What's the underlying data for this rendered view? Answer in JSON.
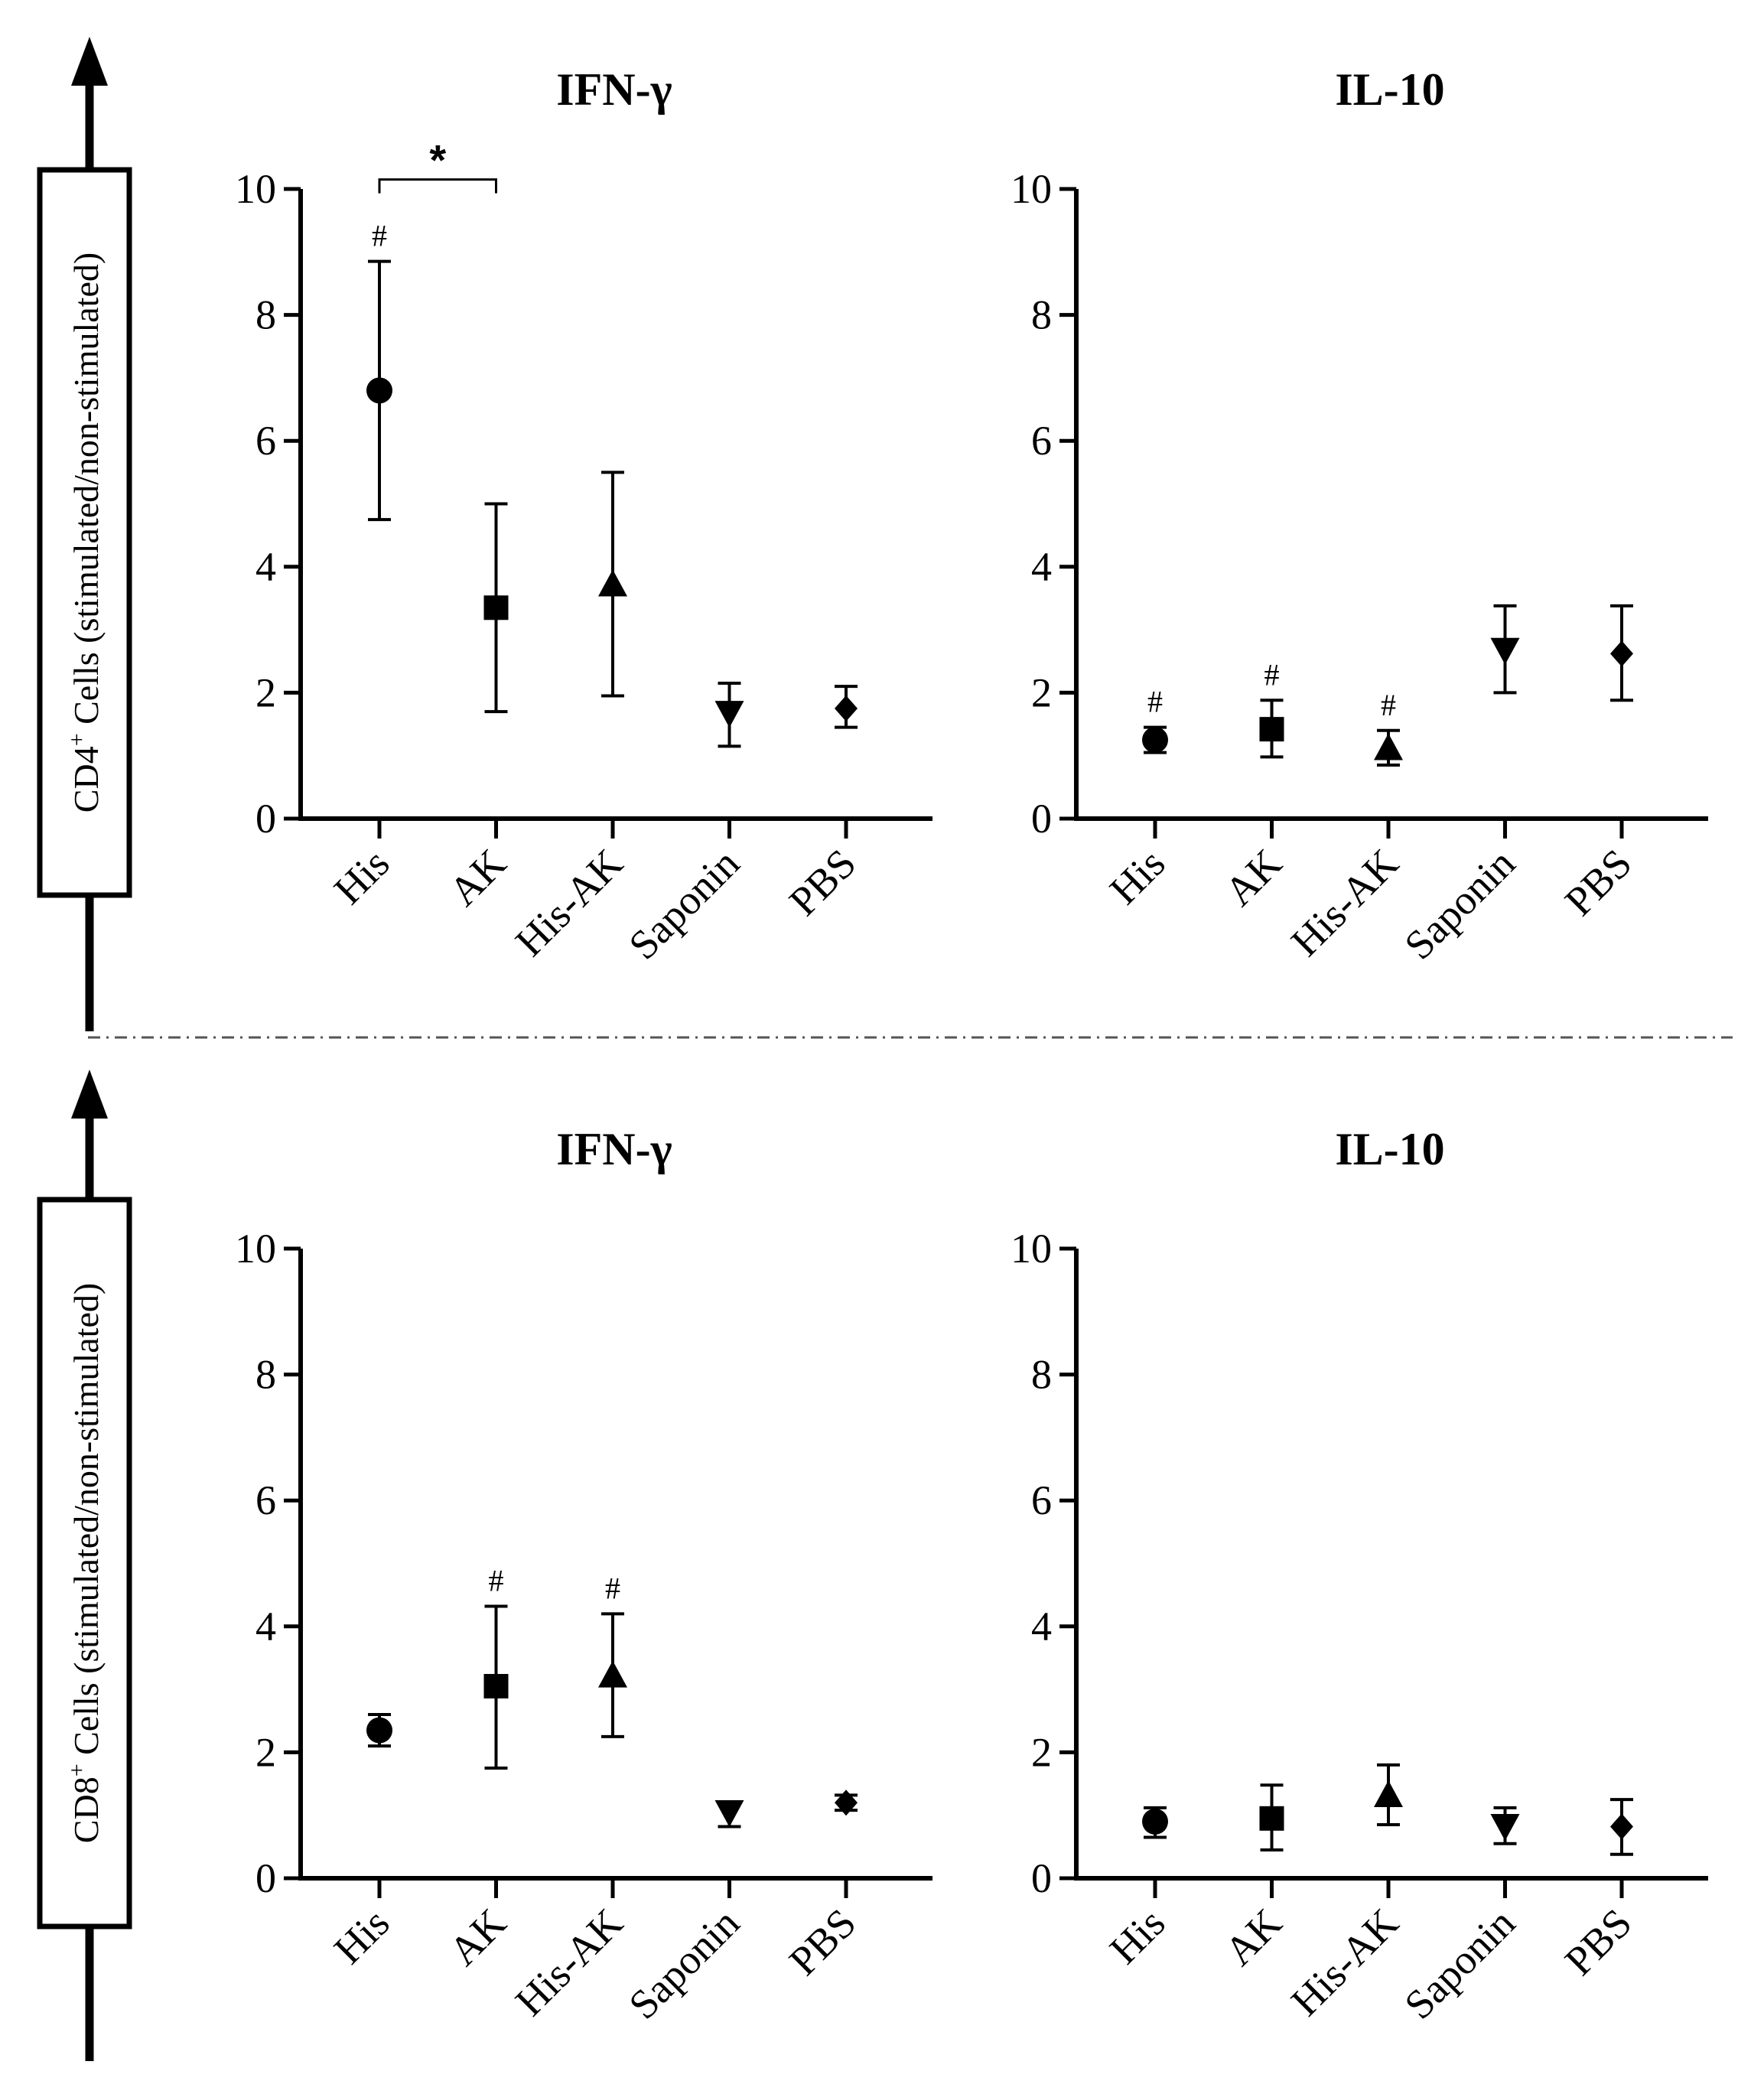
{
  "colors": {
    "ink": "#000000",
    "background": "#ffffff",
    "divider": "#555555"
  },
  "row_labels": [
    {
      "cell": "CD4",
      "sup": "+",
      "rest": " Cells (stimulated/non-stimulated)"
    },
    {
      "cell": "CD8",
      "sup": "+",
      "rest": " Cells (stimulated/non-stimulated)"
    }
  ],
  "chart_data": [
    {
      "type": "scatter",
      "row": 0,
      "col": 0,
      "title": "IFN-γ",
      "xlabel": "",
      "ylabel": "CD4+ Cells (stimulated/non-stimulated)",
      "categories": [
        "His",
        "AK",
        "His-AK",
        "Saponin",
        "PBS"
      ],
      "ylim": [
        0,
        10
      ],
      "yticks": [
        "0",
        "2",
        "4",
        "6",
        "8",
        "10"
      ],
      "markers": [
        "circle",
        "square",
        "triangle-up",
        "triangle-down",
        "diamond"
      ],
      "values": [
        6.8,
        3.35,
        3.7,
        1.7,
        1.75
      ],
      "err_low": [
        4.75,
        1.7,
        1.95,
        1.15,
        1.45
      ],
      "err_high": [
        8.85,
        5.0,
        5.5,
        2.15,
        2.1
      ],
      "hash_marks": [
        "#",
        "",
        "",
        "",
        ""
      ],
      "significance": {
        "from": 0,
        "to": 1,
        "label": "*",
        "y": 10.15
      }
    },
    {
      "type": "scatter",
      "row": 0,
      "col": 1,
      "title": "IL-10",
      "xlabel": "",
      "ylabel": "CD4+ Cells (stimulated/non-stimulated)",
      "categories": [
        "His",
        "AK",
        "His-AK",
        "Saponin",
        "PBS"
      ],
      "ylim": [
        0,
        10
      ],
      "yticks": [
        "0",
        "2",
        "4",
        "6",
        "8",
        "10"
      ],
      "markers": [
        "circle",
        "square",
        "triangle-up",
        "triangle-down",
        "diamond"
      ],
      "values": [
        1.25,
        1.42,
        1.1,
        2.7,
        2.62
      ],
      "err_low": [
        1.05,
        0.98,
        0.85,
        2.0,
        1.88
      ],
      "err_high": [
        1.45,
        1.88,
        1.4,
        3.38,
        3.38
      ],
      "hash_marks": [
        "#",
        "#",
        "#",
        "",
        ""
      ]
    },
    {
      "type": "scatter",
      "row": 1,
      "col": 0,
      "title": "IFN-γ",
      "xlabel": "",
      "ylabel": "CD8+ Cells (stimulated/non-stimulated)",
      "categories": [
        "His",
        "AK",
        "His-AK",
        "Saponin",
        "PBS"
      ],
      "ylim": [
        0,
        10
      ],
      "yticks": [
        "0",
        "2",
        "4",
        "6",
        "8",
        "10"
      ],
      "markers": [
        "circle",
        "square",
        "triangle-up",
        "triangle-down",
        "diamond"
      ],
      "values": [
        2.35,
        3.05,
        3.2,
        1.07,
        1.2
      ],
      "err_low": [
        2.1,
        1.75,
        2.25,
        0.82,
        1.08
      ],
      "err_high": [
        2.6,
        4.32,
        4.2,
        1.2,
        1.32
      ],
      "hash_marks": [
        "",
        "#",
        "#",
        "",
        ""
      ]
    },
    {
      "type": "scatter",
      "row": 1,
      "col": 1,
      "title": "IL-10",
      "xlabel": "",
      "ylabel": "CD8+ Cells (stimulated/non-stimulated)",
      "categories": [
        "His",
        "AK",
        "His-AK",
        "Saponin",
        "PBS"
      ],
      "ylim": [
        0,
        10
      ],
      "yticks": [
        "0",
        "2",
        "4",
        "6",
        "8",
        "10"
      ],
      "markers": [
        "circle",
        "square",
        "triangle-up",
        "triangle-down",
        "diamond"
      ],
      "values": [
        0.9,
        0.95,
        1.3,
        0.85,
        0.82
      ],
      "err_low": [
        0.65,
        0.45,
        0.85,
        0.55,
        0.38
      ],
      "err_high": [
        1.12,
        1.48,
        1.8,
        1.12,
        1.25
      ],
      "hash_marks": [
        "",
        "",
        "",
        "",
        ""
      ]
    }
  ]
}
